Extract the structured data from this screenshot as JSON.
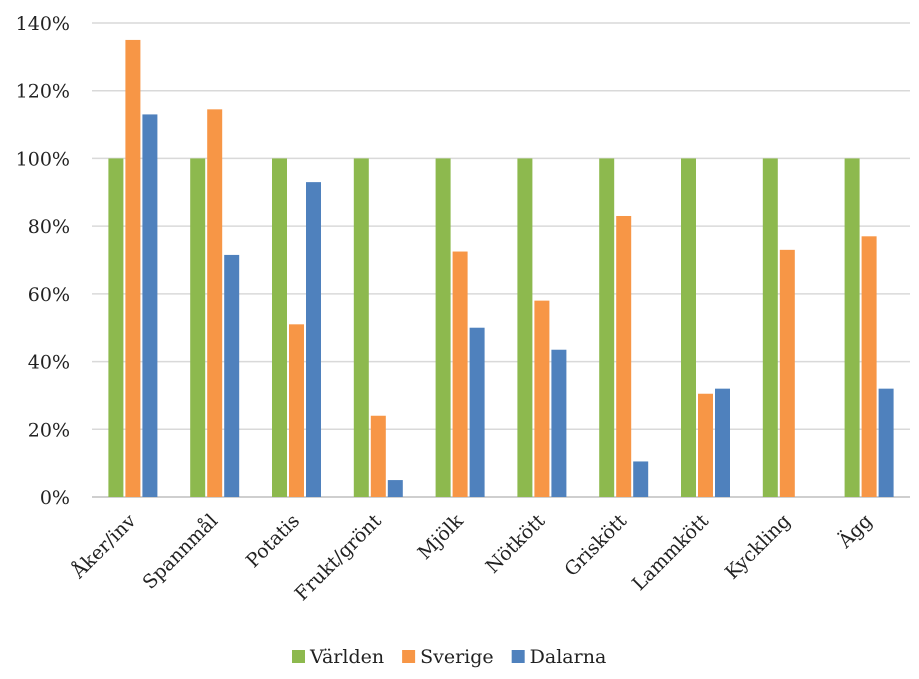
{
  "chart_data": {
    "type": "bar",
    "categories": [
      "Åker/inv",
      "Spannmål",
      "Potatis",
      "Frukt/grönt",
      "Mjölk",
      "Nötkött",
      "Griskött",
      "Lammkött",
      "Kyckling",
      "Ägg"
    ],
    "series": [
      {
        "name": "Världen",
        "color": "#8db94e",
        "values": [
          100,
          100,
          100,
          100,
          100,
          100,
          100,
          100,
          100,
          100
        ]
      },
      {
        "name": "Sverige",
        "color": "#f79646",
        "values": [
          135,
          114.5,
          51,
          24,
          72.5,
          58,
          83,
          30.5,
          73,
          77
        ]
      },
      {
        "name": "Dalarna",
        "color": "#4f81bd",
        "values": [
          113,
          71.5,
          93,
          5,
          50,
          43.5,
          10.5,
          32,
          0,
          32
        ]
      }
    ],
    "yticks": [
      "0%",
      "20%",
      "40%",
      "60%",
      "80%",
      "100%",
      "120%",
      "140%"
    ],
    "ylim": [
      0,
      140
    ],
    "grid": true,
    "legend_position": "bottom",
    "title": "",
    "xlabel": "",
    "ylabel": ""
  }
}
